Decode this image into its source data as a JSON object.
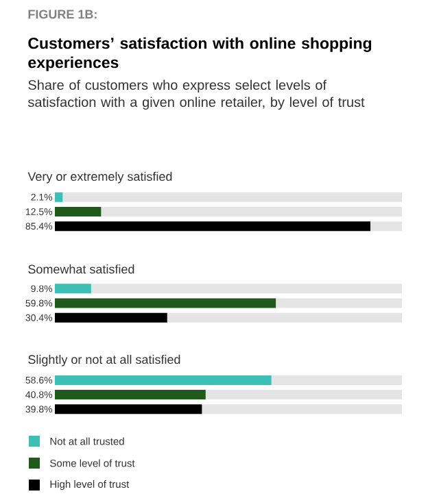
{
  "chart_data": {
    "type": "bar",
    "orientation": "horizontal",
    "title": "Customers’ satisfaction with online shopping experiences",
    "subtitle": "Share of customers who express select levels of satisfaction with a given online retailer, by level of trust",
    "annotations": [
      "FIGURE 1B:"
    ],
    "categories": [
      "Very or extremely satisfied",
      "Somewhat satisfied",
      "Slightly or not at all satisfied"
    ],
    "series": [
      {
        "name": "Not at all trusted",
        "color": "#3cbfb4",
        "values": [
          2.1,
          9.8,
          58.6
        ],
        "value_labels": [
          "2.1%",
          "9.8%",
          "58.6%"
        ]
      },
      {
        "name": "Some level of trust",
        "color": "#1f5a1c",
        "values": [
          12.5,
          59.8,
          40.8
        ],
        "value_labels": [
          "12.5%",
          "59.8%",
          "40.8%"
        ]
      },
      {
        "name": "High level of trust",
        "color": "#000000",
        "values": [
          85.4,
          30.4,
          39.8
        ],
        "value_labels": [
          "85.4%",
          "30.4%",
          "39.8%"
        ]
      }
    ],
    "legend": "bottom left",
    "grid": false
  }
}
